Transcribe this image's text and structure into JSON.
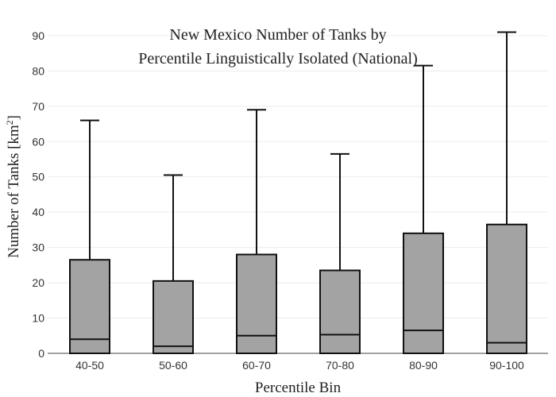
{
  "chart_data": {
    "type": "box",
    "title_lines": [
      "New Mexico Number of Tanks by",
      "Percentile Linguistically Isolated (National)"
    ],
    "xlabel": "Percentile Bin",
    "ylabel_text": "Number of Tanks  [km",
    "ylabel_sup": "2",
    "ylabel_close": "]",
    "ylim": [
      0,
      92
    ],
    "yticks": [
      0,
      10,
      20,
      30,
      40,
      50,
      60,
      70,
      80,
      90
    ],
    "grid": true,
    "box_color": "#a3a3a3",
    "line_color": "#111111",
    "categories": [
      "40-50",
      "50-60",
      "60-70",
      "70-80",
      "80-90",
      "90-100"
    ],
    "boxes": [
      {
        "category": "40-50",
        "min": 0,
        "q1": 0,
        "median": 4,
        "q3": 26.5,
        "max": 66
      },
      {
        "category": "50-60",
        "min": 0,
        "q1": 0,
        "median": 2,
        "q3": 20.5,
        "max": 50.5
      },
      {
        "category": "60-70",
        "min": 0,
        "q1": 0,
        "median": 5,
        "q3": 28,
        "max": 69
      },
      {
        "category": "70-80",
        "min": 0,
        "q1": 0,
        "median": 5.3,
        "q3": 23.5,
        "max": 56.5
      },
      {
        "category": "80-90",
        "min": 0,
        "q1": 0,
        "median": 6.5,
        "q3": 34,
        "max": 81.5
      },
      {
        "category": "90-100",
        "min": 0,
        "q1": 0,
        "median": 3,
        "q3": 36.5,
        "max": 91
      }
    ]
  }
}
